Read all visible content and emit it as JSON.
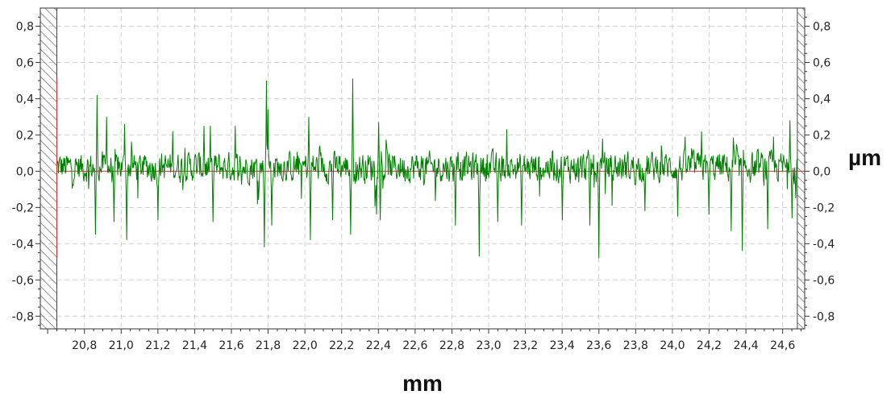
{
  "chart_data": {
    "type": "line",
    "title": "",
    "xlabel": "mm",
    "ylabel": "µm",
    "xlim": [
      20.56,
      24.72
    ],
    "ylim": [
      -0.87,
      0.9
    ],
    "x_ticks": [
      20.8,
      21.0,
      21.2,
      21.4,
      21.6,
      21.8,
      22.0,
      22.2,
      22.4,
      22.6,
      22.8,
      23.0,
      23.2,
      23.4,
      23.6,
      23.8,
      24.0,
      24.2,
      24.4,
      24.6
    ],
    "x_tick_labels": [
      "20,8",
      "21,0",
      "21,2",
      "21,4",
      "21,6",
      "21,8",
      "22,0",
      "22,2",
      "22,4",
      "22,6",
      "22,8",
      "23,0",
      "23,2",
      "23,4",
      "23,6",
      "23,8",
      "24,0",
      "24,2",
      "24,4",
      "24,6"
    ],
    "y_ticks": [
      0.8,
      0.6,
      0.4,
      0.2,
      0.0,
      -0.2,
      -0.4,
      -0.6,
      -0.8
    ],
    "y_tick_labels": [
      "0,8",
      "0,6",
      "0,4",
      "0,2",
      "0,0",
      "-0,2",
      "-0,4",
      "-0,6",
      "-0,8"
    ],
    "grid": true,
    "excluded_ranges": [
      [
        20.56,
        20.65
      ],
      [
        24.68,
        24.72
      ]
    ],
    "cursor_line": {
      "x": 20.65,
      "y_range": [
        -0.48,
        0.51
      ],
      "color": "#e03030"
    },
    "zero_line_color": "#e03030",
    "series": [
      {
        "color": "#008000",
        "profile": {
          "x_start": 20.65,
          "x_end": 24.68,
          "points": 1400,
          "noise_amplitude": 0.09,
          "peaks": [
            {
              "x": 20.87,
              "y": 0.42
            },
            {
              "x": 20.86,
              "y": -0.35
            },
            {
              "x": 20.92,
              "y": 0.3
            },
            {
              "x": 20.96,
              "y": -0.28
            },
            {
              "x": 21.02,
              "y": 0.26
            },
            {
              "x": 21.03,
              "y": -0.38
            },
            {
              "x": 21.2,
              "y": -0.27
            },
            {
              "x": 21.28,
              "y": 0.22
            },
            {
              "x": 21.45,
              "y": 0.25
            },
            {
              "x": 21.5,
              "y": -0.28
            },
            {
              "x": 21.62,
              "y": 0.25
            },
            {
              "x": 21.78,
              "y": -0.42
            },
            {
              "x": 21.79,
              "y": 0.5
            },
            {
              "x": 21.8,
              "y": 0.34
            },
            {
              "x": 21.82,
              "y": -0.3
            },
            {
              "x": 22.02,
              "y": 0.3
            },
            {
              "x": 22.03,
              "y": -0.38
            },
            {
              "x": 22.15,
              "y": -0.27
            },
            {
              "x": 22.26,
              "y": 0.51
            },
            {
              "x": 22.25,
              "y": -0.35
            },
            {
              "x": 22.4,
              "y": 0.27
            },
            {
              "x": 22.41,
              "y": -0.27
            },
            {
              "x": 22.82,
              "y": -0.3
            },
            {
              "x": 22.95,
              "y": -0.47
            },
            {
              "x": 23.05,
              "y": -0.28
            },
            {
              "x": 23.18,
              "y": -0.3
            },
            {
              "x": 23.4,
              "y": -0.27
            },
            {
              "x": 23.55,
              "y": -0.3
            },
            {
              "x": 23.6,
              "y": -0.48
            },
            {
              "x": 23.62,
              "y": 0.18
            },
            {
              "x": 23.85,
              "y": -0.22
            },
            {
              "x": 24.03,
              "y": -0.25
            },
            {
              "x": 24.16,
              "y": 0.22
            },
            {
              "x": 24.2,
              "y": -0.24
            },
            {
              "x": 24.32,
              "y": -0.33
            },
            {
              "x": 24.38,
              "y": -0.44
            },
            {
              "x": 24.52,
              "y": -0.32
            },
            {
              "x": 24.55,
              "y": 0.19
            },
            {
              "x": 24.64,
              "y": 0.28
            },
            {
              "x": 24.65,
              "y": -0.26
            },
            {
              "x": 24.67,
              "y": -0.15
            }
          ]
        }
      }
    ]
  }
}
